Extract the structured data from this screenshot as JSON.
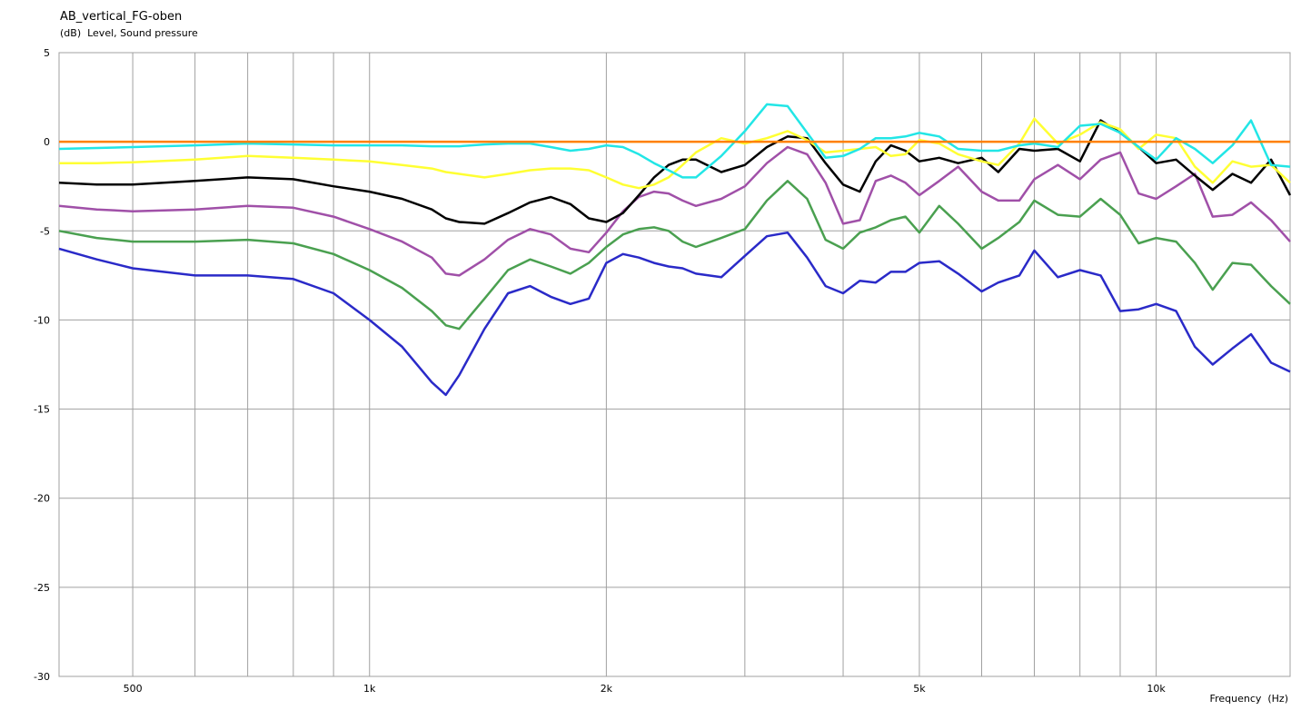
{
  "chart_data": {
    "type": "line",
    "title": "AB_vertical_FG-oben",
    "ylabel": "(dB)  Level, Sound pressure",
    "xlabel": "Frequency  (Hz)",
    "log_x": true,
    "grid": true,
    "xlim": [
      403,
      14800
    ],
    "ylim": [
      -30,
      5
    ],
    "yticks": [
      5,
      0,
      -5,
      -10,
      -15,
      -20,
      -25,
      -30
    ],
    "xticks": [
      500,
      {
        "value": 1000,
        "label": "1k"
      },
      {
        "value": 2000,
        "label": "2k"
      },
      {
        "value": 5000,
        "label": "5k"
      },
      {
        "value": 10000,
        "label": "10k"
      }
    ],
    "x_minor_ticks": [
      600,
      700,
      800,
      900,
      3000,
      4000,
      6000,
      7000,
      8000,
      9000
    ],
    "x": [
      403,
      450,
      500,
      600,
      700,
      800,
      900,
      1000,
      1100,
      1200,
      1250,
      1300,
      1400,
      1500,
      1600,
      1700,
      1800,
      1900,
      2000,
      2100,
      2200,
      2300,
      2400,
      2500,
      2600,
      2800,
      3000,
      3200,
      3400,
      3600,
      3800,
      4000,
      4200,
      4400,
      4600,
      4800,
      5000,
      5300,
      5600,
      6000,
      6300,
      6700,
      7000,
      7500,
      8000,
      8500,
      9000,
      9500,
      10000,
      10600,
      11200,
      11800,
      12500,
      13200,
      14000,
      14800
    ],
    "series": [
      {
        "color": "#2a2ac8",
        "values": [
          -6.0,
          -6.6,
          -7.1,
          -7.5,
          -7.5,
          -7.7,
          -8.5,
          -10.0,
          -11.5,
          -13.5,
          -14.2,
          -13.1,
          -10.5,
          -8.5,
          -8.1,
          -8.7,
          -9.1,
          -8.8,
          -6.8,
          -6.3,
          -6.5,
          -6.8,
          -7.0,
          -7.1,
          -7.4,
          -7.6,
          -6.4,
          -5.3,
          -5.1,
          -6.5,
          -8.1,
          -8.5,
          -7.8,
          -7.9,
          -7.3,
          -7.3,
          -6.8,
          -6.7,
          -7.4,
          -8.4,
          -7.9,
          -7.5,
          -6.1,
          -7.6,
          -7.2,
          -7.5,
          -9.5,
          -9.4,
          -9.1,
          -9.5,
          -11.5,
          -12.5,
          -11.6,
          -10.8,
          -12.4,
          -12.9
        ]
      },
      {
        "color": "#4aa050",
        "values": [
          -5.0,
          -5.4,
          -5.6,
          -5.6,
          -5.5,
          -5.7,
          -6.3,
          -7.2,
          -8.2,
          -9.5,
          -10.3,
          -10.5,
          -8.8,
          -7.2,
          -6.6,
          -7.0,
          -7.4,
          -6.8,
          -5.9,
          -5.2,
          -4.9,
          -4.8,
          -5.0,
          -5.6,
          -5.9,
          -5.4,
          -4.9,
          -3.3,
          -2.2,
          -3.2,
          -5.5,
          -6.0,
          -5.1,
          -4.8,
          -4.4,
          -4.2,
          -5.1,
          -3.6,
          -4.6,
          -6.0,
          -5.4,
          -4.5,
          -3.3,
          -4.1,
          -4.2,
          -3.2,
          -4.1,
          -5.7,
          -5.4,
          -5.6,
          -6.8,
          -8.3,
          -6.8,
          -6.9,
          -8.1,
          -9.1
        ]
      },
      {
        "color": "#a050a8",
        "values": [
          -3.6,
          -3.8,
          -3.9,
          -3.8,
          -3.6,
          -3.7,
          -4.2,
          -4.9,
          -5.6,
          -6.5,
          -7.4,
          -7.5,
          -6.6,
          -5.5,
          -4.9,
          -5.2,
          -6.0,
          -6.2,
          -5.1,
          -3.9,
          -3.1,
          -2.8,
          -2.9,
          -3.3,
          -3.6,
          -3.2,
          -2.5,
          -1.2,
          -0.3,
          -0.7,
          -2.3,
          -4.6,
          -4.4,
          -2.2,
          -1.9,
          -2.3,
          -3.0,
          -2.2,
          -1.4,
          -2.8,
          -3.3,
          -3.3,
          -2.1,
          -1.3,
          -2.1,
          -1.0,
          -0.6,
          -2.9,
          -3.2,
          -2.5,
          -1.8,
          -4.2,
          -4.1,
          -3.4,
          -4.4,
          -5.6
        ]
      },
      {
        "color": "#000000",
        "values": [
          -2.3,
          -2.4,
          -2.4,
          -2.2,
          -2.0,
          -2.1,
          -2.5,
          -2.8,
          -3.2,
          -3.8,
          -4.3,
          -4.5,
          -4.6,
          -4.0,
          -3.4,
          -3.1,
          -3.5,
          -4.3,
          -4.5,
          -4.0,
          -3.0,
          -2.0,
          -1.3,
          -1.0,
          -1.0,
          -1.7,
          -1.3,
          -0.3,
          0.3,
          0.2,
          -1.2,
          -2.4,
          -2.8,
          -1.1,
          -0.2,
          -0.5,
          -1.1,
          -0.9,
          -1.2,
          -0.9,
          -1.7,
          -0.4,
          -0.5,
          -0.4,
          -1.1,
          1.2,
          0.5,
          -0.3,
          -1.2,
          -1.0,
          -1.9,
          -2.7,
          -1.8,
          -2.3,
          -1.0,
          -3.0
        ]
      },
      {
        "color": "#ffff33",
        "values": [
          -1.2,
          -1.2,
          -1.15,
          -1.0,
          -0.8,
          -0.9,
          -1.0,
          -1.1,
          -1.3,
          -1.5,
          -1.7,
          -1.8,
          -2.0,
          -1.8,
          -1.6,
          -1.5,
          -1.5,
          -1.6,
          -2.0,
          -2.4,
          -2.6,
          -2.4,
          -2.0,
          -1.3,
          -0.6,
          0.2,
          -0.1,
          0.2,
          0.6,
          0.1,
          -0.6,
          -0.5,
          -0.4,
          -0.3,
          -0.8,
          -0.7,
          0.1,
          -0.1,
          -0.7,
          -1.1,
          -1.3,
          -0.1,
          1.3,
          -0.1,
          0.4,
          1.1,
          0.7,
          -0.4,
          0.4,
          0.2,
          -1.4,
          -2.3,
          -1.1,
          -1.4,
          -1.3,
          -2.3
        ]
      },
      {
        "color": "#22e6e6",
        "values": [
          -0.4,
          -0.35,
          -0.3,
          -0.2,
          -0.1,
          -0.15,
          -0.2,
          -0.2,
          -0.2,
          -0.25,
          -0.25,
          -0.25,
          -0.15,
          -0.1,
          -0.1,
          -0.3,
          -0.5,
          -0.4,
          -0.2,
          -0.3,
          -0.7,
          -1.2,
          -1.6,
          -2.0,
          -2.0,
          -0.8,
          0.6,
          2.1,
          2.0,
          0.5,
          -0.9,
          -0.8,
          -0.4,
          0.2,
          0.2,
          0.3,
          0.5,
          0.3,
          -0.4,
          -0.5,
          -0.5,
          -0.2,
          -0.1,
          -0.3,
          0.9,
          1.0,
          0.5,
          -0.3,
          -1.0,
          0.2,
          -0.4,
          -1.2,
          -0.2,
          1.2,
          -1.3,
          -1.4
        ]
      },
      {
        "color": "#ff8000",
        "x": [
          403,
          14800
        ],
        "values": [
          0,
          0
        ]
      }
    ]
  }
}
